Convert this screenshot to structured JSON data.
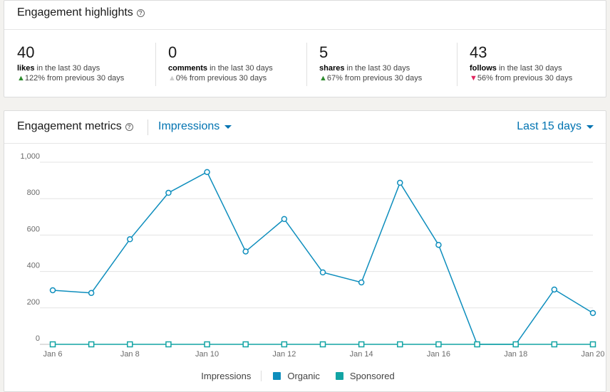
{
  "highlights": {
    "title": "Engagement highlights",
    "help_icon": "question-circle-icon",
    "stats": [
      {
        "value": "40",
        "label": "likes",
        "period": " in the last 30 days",
        "arrow": "▲",
        "change": "122%",
        "direction": "up",
        "suffix": " from previous 30 days"
      },
      {
        "value": "0",
        "label": "comments",
        "period": " in the last 30 days",
        "arrow": "▲",
        "change": "0%",
        "direction": "neutral",
        "suffix": " from previous 30 days"
      },
      {
        "value": "5",
        "label": "shares",
        "period": " in the last 30 days",
        "arrow": "▲",
        "change": "67%",
        "direction": "up",
        "suffix": " from previous 30 days"
      },
      {
        "value": "43",
        "label": "follows",
        "period": " in the last 30 days",
        "arrow": "▼",
        "change": "56%",
        "direction": "down",
        "suffix": " from previous 30 days"
      }
    ]
  },
  "metrics": {
    "title": "Engagement metrics",
    "metric_dropdown": "Impressions",
    "range_dropdown": "Last 15 days",
    "legend": {
      "title": "Impressions",
      "items": [
        {
          "name": "Organic",
          "color": "#0e8ebd"
        },
        {
          "name": "Sponsored",
          "color": "#12a4a4"
        }
      ]
    }
  },
  "chart_data": {
    "type": "line",
    "title": "",
    "xlabel": "",
    "ylabel": "",
    "ylim": [
      0,
      1000
    ],
    "yticks": [
      0,
      200,
      400,
      600,
      800,
      1000
    ],
    "ytick_labels": [
      "0",
      "200",
      "400",
      "600",
      "800",
      "1,000"
    ],
    "x": [
      "Jan 6",
      "Jan 7",
      "Jan 8",
      "Jan 9",
      "Jan 10",
      "Jan 11",
      "Jan 12",
      "Jan 13",
      "Jan 14",
      "Jan 15",
      "Jan 16",
      "Jan 17",
      "Jan 18",
      "Jan 19",
      "Jan 20"
    ],
    "xtick_labels": [
      "Jan 6",
      "",
      "Jan 8",
      "",
      "Jan 10",
      "",
      "Jan 12",
      "",
      "Jan 14",
      "",
      "Jan 16",
      "",
      "Jan 18",
      "",
      "Jan 20"
    ],
    "series": [
      {
        "name": "Organic",
        "color": "#0e8ebd",
        "marker": "circle",
        "values": [
          297,
          282,
          577,
          832,
          946,
          510,
          688,
          395,
          340,
          887,
          546,
          0,
          0,
          301,
          172
        ]
      },
      {
        "name": "Sponsored",
        "color": "#12a4a4",
        "marker": "square",
        "values": [
          0,
          0,
          0,
          0,
          0,
          0,
          0,
          0,
          0,
          0,
          0,
          0,
          0,
          0,
          0
        ]
      }
    ],
    "grid": true
  }
}
